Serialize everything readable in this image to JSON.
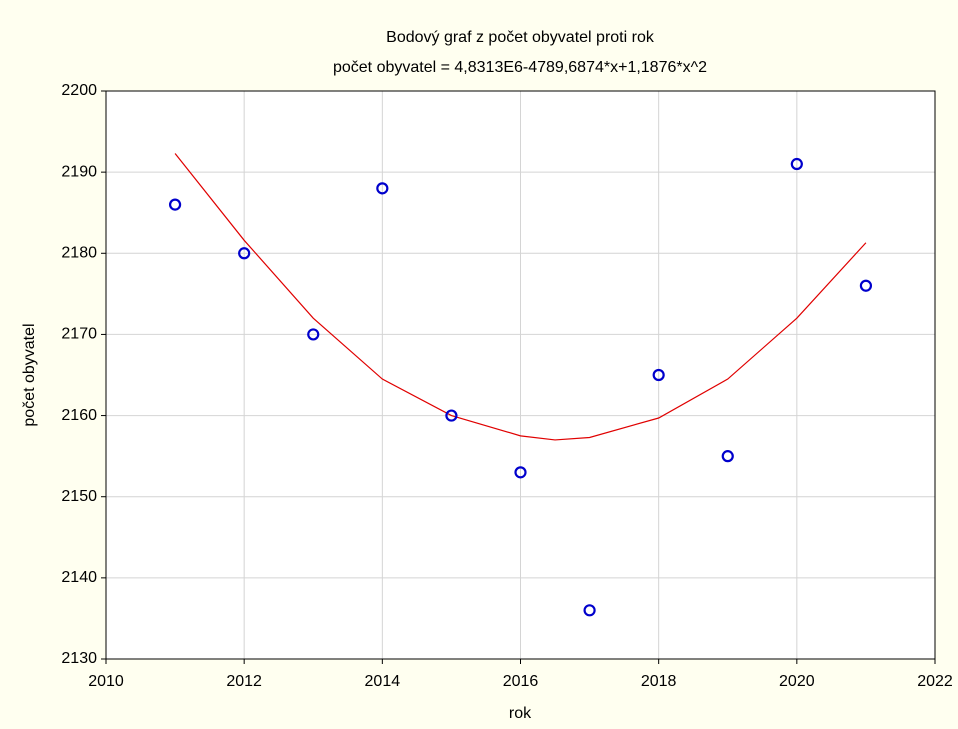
{
  "chart_data": {
    "type": "scatter",
    "title": "Bodový graf z počet obyvatel proti rok",
    "subtitle": "počet obyvatel = 4,8313E6-4789,6874*x+1,1876*x^2",
    "x_label": "rok",
    "y_label": "počet obyvatel",
    "x": [
      2011,
      2012,
      2013,
      2014,
      2015,
      2016,
      2017,
      2018,
      2019,
      2020,
      2021
    ],
    "values": [
      2186,
      2180,
      2170,
      2188,
      2160,
      2153,
      2136,
      2165,
      2155,
      2191,
      2176
    ],
    "color": "#0000cc",
    "fit": {
      "x": [
        2011,
        2012,
        2013,
        2014,
        2015,
        2016,
        2016.5,
        2017,
        2018,
        2019,
        2020,
        2021
      ],
      "values": [
        2192.3,
        2181.6,
        2172,
        2164.5,
        2160,
        2157.5,
        2157,
        2157.3,
        2159.7,
        2164.5,
        2172,
        2181.3
      ],
      "color": "#e00000"
    },
    "xlim": [
      2010,
      2022
    ],
    "ylim": [
      2130,
      2200
    ],
    "xticks": [
      2010,
      2012,
      2014,
      2016,
      2018,
      2020,
      2022
    ],
    "yticks": [
      2130,
      2140,
      2150,
      2160,
      2170,
      2180,
      2190,
      2200
    ],
    "grid": true
  }
}
